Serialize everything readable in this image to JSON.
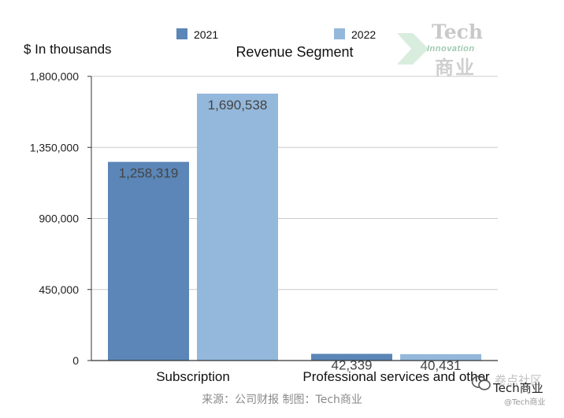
{
  "chart_data": {
    "type": "bar",
    "title": "Revenue Segment",
    "ylabel": "$ In thousands",
    "xlabel": "",
    "categories": [
      "Subscription",
      "Professional services and other"
    ],
    "series": [
      {
        "name": "2021",
        "values": [
          1258319,
          42339
        ],
        "labels": [
          "1,258,319",
          "42,339"
        ],
        "color": "#5b86b7"
      },
      {
        "name": "2022",
        "values": [
          1690538,
          40431
        ],
        "labels": [
          "1,690,538",
          "40,431"
        ],
        "color": "#94b8db"
      }
    ],
    "ylim": [
      0,
      1800000
    ],
    "yticks": [
      0,
      450000,
      900000,
      1350000,
      1800000
    ],
    "ytick_labels": [
      "0",
      "450,000",
      "900,000",
      "1,350,000",
      "1,800,000"
    ],
    "grid": true,
    "legend": "top-center"
  },
  "watermark": {
    "brand": "Tech",
    "sub": "Innovation",
    "cn": "商业"
  },
  "source": "来源：公司财报 制图：Tech商业",
  "wechat": {
    "name": "Tech商业",
    "ghost": "卷点社区",
    "handle": "@Tech商业"
  },
  "colors": {
    "grid": "#cccccc",
    "axis": "#333333",
    "label": "#444444"
  }
}
